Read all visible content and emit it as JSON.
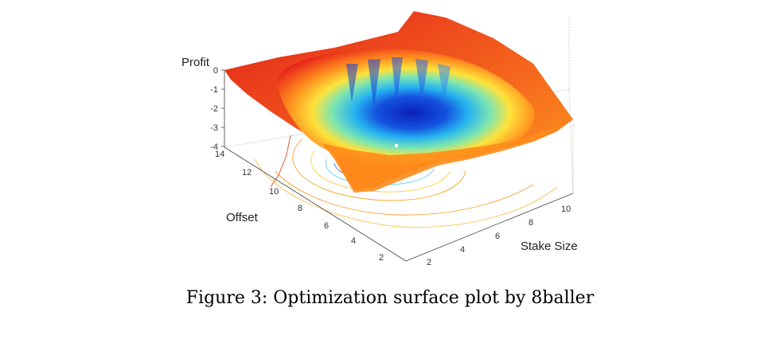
{
  "caption": "Figure 3: Optimization surface plot by 8baller",
  "chart_data": {
    "type": "surface",
    "zlabel": "Profit",
    "ylabel": "Offset",
    "xlabel": "Stake Size",
    "z_ticks": [
      "0",
      "-1",
      "-2",
      "-3",
      "-4"
    ],
    "y_ticks": [
      "14",
      "12",
      "10",
      "8",
      "6",
      "4",
      "2"
    ],
    "x_ticks": [
      "2",
      "4",
      "6",
      "8",
      "10"
    ],
    "zlim": [
      -4,
      0
    ],
    "ylim": [
      2,
      14
    ],
    "xlim": [
      2,
      10
    ],
    "minimum_marker": {
      "x": 6.5,
      "y": 8,
      "z": -4
    },
    "colormap": "jet",
    "surface_description_colors": {
      "high": "#d7191c",
      "mid": "#ffe135",
      "low": "#0a2bd4"
    }
  }
}
